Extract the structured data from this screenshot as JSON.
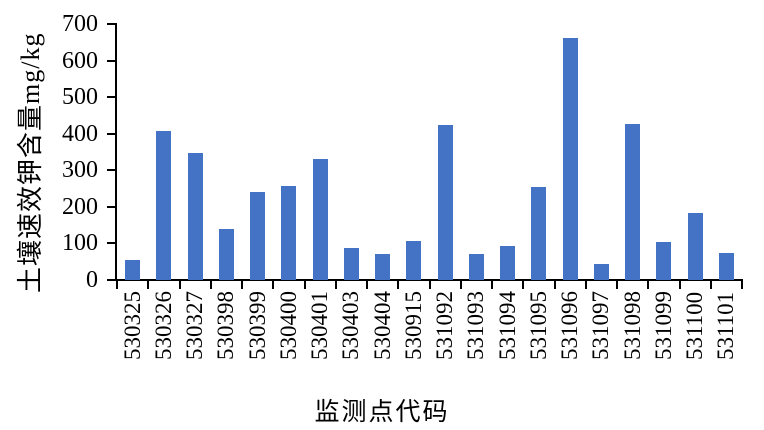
{
  "chart_data": {
    "type": "bar",
    "title": "",
    "xlabel": "监测点代码",
    "ylabel": "土壤速效钾含量mg/kg",
    "categories": [
      "530325",
      "530326",
      "530327",
      "530398",
      "530399",
      "530400",
      "530401",
      "530403",
      "530404",
      "530915",
      "531092",
      "531093",
      "531094",
      "531095",
      "531096",
      "531097",
      "531098",
      "531099",
      "531100",
      "531101"
    ],
    "values": [
      56,
      408,
      346,
      139,
      241,
      258,
      331,
      88,
      70,
      108,
      424,
      70,
      94,
      254,
      661,
      44,
      427,
      104,
      182,
      73
    ],
    "ylim": [
      0,
      700
    ],
    "yticks": [
      0,
      100,
      200,
      300,
      400,
      500,
      600,
      700
    ],
    "xlabel_rotation_deg": -90,
    "grid": false,
    "legend": false,
    "bar_color": "#4472C4",
    "axis_color": "#000000",
    "background_color": "#FFFFFF"
  }
}
